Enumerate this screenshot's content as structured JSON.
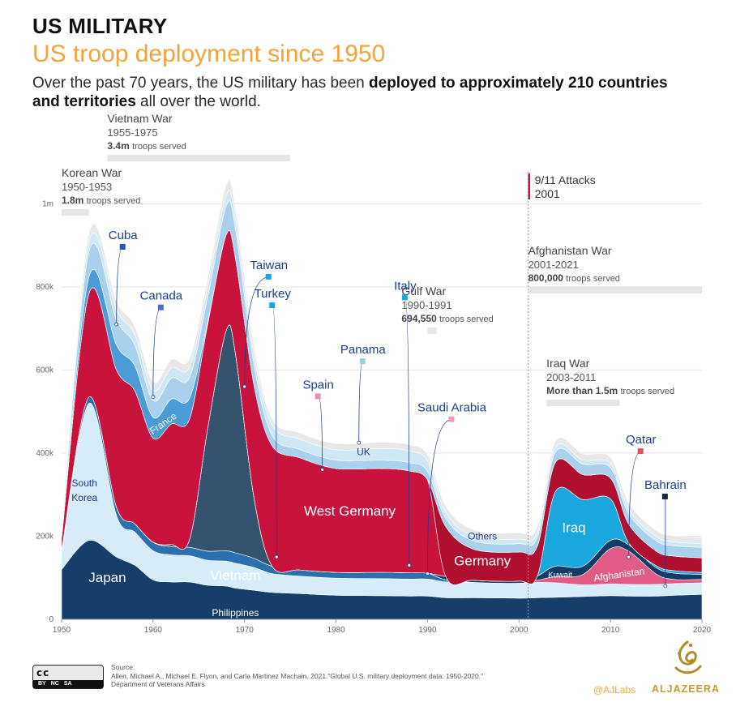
{
  "header": {
    "kicker": "US MILITARY",
    "subtitle": "US troop deployment since 1950",
    "intro_pre": "Over the past 70 years, the US military has been ",
    "intro_bold": "deployed to approximately 210 countries and territories",
    "intro_post": " all over the world."
  },
  "chart_data": {
    "type": "area",
    "stacked": true,
    "x_unit": "year",
    "xlim": [
      1950,
      2020
    ],
    "ylim": [
      0,
      1100000
    ],
    "x_ticks": [
      "1950",
      "1960",
      "1970",
      "1980",
      "1990",
      "2000",
      "2010",
      "2020"
    ],
    "y_ticks": [
      "0",
      "200k",
      "400k",
      "600k",
      "800k",
      "1m"
    ],
    "x": [
      1950,
      1953,
      1956,
      1958,
      1960,
      1962,
      1964,
      1966,
      1968,
      1969,
      1971,
      1973,
      1976,
      1980,
      1985,
      1988,
      1990,
      1992,
      1995,
      2000,
      2002,
      2004,
      2007,
      2010,
      2012,
      2015,
      2017,
      2020
    ],
    "series": [
      {
        "name": "Japan",
        "color": "#163e6a",
        "values": [
          120000,
          190000,
          150000,
          130000,
          95000,
          90000,
          90000,
          82000,
          80000,
          75000,
          70000,
          65000,
          62000,
          58000,
          57000,
          56000,
          56000,
          52000,
          52000,
          51000,
          52000,
          53000,
          55000,
          57000,
          56000,
          56000,
          58000,
          60000
        ]
      },
      {
        "name": "South Korea",
        "color": "#d6ecf9",
        "values": [
          40000,
          330000,
          100000,
          80000,
          70000,
          65000,
          63000,
          60000,
          60000,
          60000,
          55000,
          45000,
          42000,
          41000,
          41000,
          41000,
          41000,
          38000,
          37000,
          36000,
          37000,
          35000,
          28000,
          28000,
          28000,
          28000,
          28000,
          28000
        ]
      },
      {
        "name": "Philippines",
        "color": "#2a6fae",
        "values": [
          5000,
          15000,
          20000,
          20000,
          20000,
          20000,
          20000,
          22000,
          25000,
          25000,
          22000,
          18000,
          15000,
          14000,
          15000,
          15000,
          14000,
          5000,
          0,
          0,
          0,
          0,
          0,
          0,
          0,
          0,
          0,
          0
        ]
      },
      {
        "name": "Vietnam",
        "color": "#34536f",
        "values": [
          0,
          0,
          0,
          0,
          1000,
          5000,
          20000,
          300000,
          530000,
          480000,
          150000,
          0,
          0,
          0,
          0,
          0,
          0,
          0,
          0,
          0,
          0,
          0,
          0,
          0,
          0,
          0,
          0,
          0
        ]
      },
      {
        "name": "Afghanistan",
        "color": "#e05c86",
        "values": [
          0,
          0,
          0,
          0,
          0,
          0,
          0,
          0,
          0,
          0,
          0,
          0,
          0,
          0,
          0,
          0,
          0,
          0,
          0,
          0,
          5000,
          15000,
          25000,
          85000,
          80000,
          25000,
          10000,
          8000
        ]
      },
      {
        "name": "Kuwait",
        "color": "#123c66",
        "values": [
          0,
          0,
          0,
          0,
          0,
          0,
          0,
          0,
          0,
          0,
          0,
          0,
          0,
          0,
          0,
          0,
          0,
          8000,
          5000,
          5000,
          10000,
          25000,
          20000,
          20000,
          15000,
          15000,
          15000,
          12000
        ]
      },
      {
        "name": "Iraq",
        "color": "#1aa7de",
        "values": [
          0,
          0,
          0,
          0,
          0,
          0,
          0,
          0,
          0,
          0,
          0,
          0,
          0,
          0,
          0,
          0,
          0,
          0,
          0,
          0,
          0,
          180000,
          160000,
          100000,
          5000,
          5000,
          6000,
          5000
        ]
      },
      {
        "name": "West Germany",
        "color": "#c8143c",
        "values": [
          30000,
          250000,
          330000,
          320000,
          250000,
          290000,
          290000,
          250000,
          230000,
          230000,
          270000,
          290000,
          270000,
          250000,
          250000,
          245000,
          225000,
          0,
          0,
          0,
          0,
          0,
          0,
          0,
          0,
          0,
          0,
          0
        ]
      },
      {
        "name": "Germany",
        "color": "#b01030",
        "values": [
          0,
          0,
          0,
          0,
          0,
          0,
          0,
          0,
          0,
          0,
          0,
          0,
          0,
          0,
          0,
          0,
          0,
          120000,
          75000,
          70000,
          72000,
          70000,
          60000,
          50000,
          45000,
          35000,
          35000,
          35000
        ]
      },
      {
        "name": "France",
        "color": "#4a9bd6",
        "values": [
          5000,
          40000,
          60000,
          60000,
          50000,
          60000,
          50000,
          5000,
          0,
          0,
          0,
          0,
          0,
          0,
          0,
          0,
          0,
          0,
          0,
          0,
          0,
          0,
          0,
          0,
          0,
          0,
          0,
          0
        ]
      },
      {
        "name": "Others",
        "color": "#a9d1ee",
        "values": [
          15000,
          60000,
          60000,
          50000,
          40000,
          50000,
          50000,
          60000,
          70000,
          70000,
          50000,
          25000,
          20000,
          20000,
          20000,
          20000,
          20000,
          20000,
          20000,
          20000,
          22000,
          25000,
          25000,
          25000,
          25000,
          25000,
          25000,
          25000
        ]
      },
      {
        "name": "UK",
        "color": "#cfe8f6",
        "values": [
          5000,
          25000,
          25000,
          25000,
          25000,
          25000,
          25000,
          25000,
          25000,
          25000,
          25000,
          25000,
          25000,
          25000,
          28000,
          28000,
          25000,
          14000,
          12000,
          11000,
          11000,
          11000,
          10000,
          10000,
          10000,
          10000,
          9000,
          9000
        ]
      },
      {
        "name": "Outline",
        "color": "#e8e8e8",
        "values": [
          10000,
          20000,
          20000,
          20000,
          20000,
          20000,
          20000,
          20000,
          25000,
          25000,
          20000,
          15000,
          15000,
          15000,
          15000,
          15000,
          15000,
          15000,
          15000,
          15000,
          15000,
          15000,
          15000,
          15000,
          15000,
          15000,
          15000,
          15000
        ]
      }
    ],
    "series_labels": [
      {
        "text": "Cuba",
        "x": 1956,
        "y": 710000,
        "dx": 8,
        "dy": -95,
        "color": "#1d3c8f",
        "box": "#1d5aa8"
      },
      {
        "text": "Canada",
        "x": 1960,
        "y": 535000,
        "dx": 10,
        "dy": -110,
        "color": "#1d3c8f",
        "box": "#4a6ad6"
      },
      {
        "text": "Taiwan",
        "x": 1970,
        "y": 560000,
        "dx": 30,
        "dy": -135,
        "color": "#1d3c8f",
        "box": "#1aa7de"
      },
      {
        "text": "Turkey",
        "x": 1973.5,
        "y": 150000,
        "dx": -5,
        "dy": -310,
        "color": "#1d3c8f",
        "box": "#1aa7de"
      },
      {
        "text": "Spain",
        "x": 1978.5,
        "y": 360000,
        "dx": -5,
        "dy": -90,
        "color": "#1d3c8f",
        "box": "#f08cb8"
      },
      {
        "text": "Panama",
        "x": 1982.5,
        "y": 425000,
        "dx": 5,
        "dy": -100,
        "color": "#1d3c8f",
        "box": "#9fd2d6"
      },
      {
        "text": "Italy",
        "x": 1988,
        "y": 130000,
        "dx": -5,
        "dy": -330,
        "color": "#1d3c8f",
        "box": "#1aa7de"
      },
      {
        "text": "Saudi Arabia",
        "x": 1990,
        "y": 110000,
        "dx": 30,
        "dy": -190,
        "color": "#1d3c8f",
        "box": "#f29ab8"
      },
      {
        "text": "Qatar",
        "x": 2012,
        "y": 150000,
        "dx": 15,
        "dy": -130,
        "color": "#1d3c8f",
        "box": "#e8505b"
      },
      {
        "text": "Bahrain",
        "x": 2016,
        "y": 80000,
        "dx": 0,
        "dy": -110,
        "color": "#1d3c8f",
        "box": "#0f2a44"
      }
    ],
    "inline_labels": [
      {
        "text": "Japan",
        "x": 1955,
        "y": 90000,
        "color": "#ffffff"
      },
      {
        "text": "Vietnam",
        "x": 1969,
        "y": 95000,
        "color": "#ffffff"
      },
      {
        "text": "Philippines",
        "x": 1969,
        "y": 8000,
        "color": "#ffffff"
      },
      {
        "text": "South",
        "x": 1952.5,
        "y": 320000,
        "color": "#1d3c8f"
      },
      {
        "text": "Korea",
        "x": 1952.5,
        "y": 285000,
        "color": "#1d3c8f"
      },
      {
        "text": "France",
        "x": 1961.3,
        "y": 465000,
        "color": "#ffffff"
      },
      {
        "text": "West Germany",
        "x": 1981.5,
        "y": 250000,
        "color": "#ffffff"
      },
      {
        "text": "UK",
        "x": 1983,
        "y": 395000,
        "color": "#1d3c8f"
      },
      {
        "text": "Germany",
        "x": 1996,
        "y": 130000,
        "color": "#ffffff"
      },
      {
        "text": "Others",
        "x": 1996,
        "y": 192000,
        "color": "#1d3c8f"
      },
      {
        "text": "Iraq",
        "x": 2006,
        "y": 210000,
        "color": "#ffffff"
      },
      {
        "text": "Kuwait",
        "x": 2004.5,
        "y": 100000,
        "color": "#ffffff"
      },
      {
        "text": "Afghanistan",
        "x": 2011,
        "y": 100000,
        "color": "#ffffff"
      }
    ],
    "events": [
      {
        "name": "Korean War",
        "years": "1950-1953",
        "troops": "1.8m",
        "troops_label": "troops served",
        "start": 1950,
        "end": 1953
      },
      {
        "name": "Vietnam War",
        "years": "1955-1975",
        "troops": "3.4m",
        "troops_label": "troops served",
        "start": 1955,
        "end": 1975
      },
      {
        "name": "Gulf War",
        "years": "1990-1991",
        "troops": "694,550",
        "troops_label": "troops served",
        "start": 1990,
        "end": 1991
      },
      {
        "name": "Afghanistan War",
        "years": "2001-2021",
        "troops": "800,000",
        "troops_label": "troops served",
        "start": 2001,
        "end": 2021
      },
      {
        "name": "Iraq War",
        "years": "2003-2011",
        "troops": "More than 1.5m",
        "troops_label": "troops served",
        "start": 2003,
        "end": 2011
      }
    ],
    "marker": {
      "title": "9/11 Attacks",
      "year_label": "2001",
      "x": 2001,
      "color": "#c8143c"
    },
    "grid": true
  },
  "footer": {
    "source_label": "Source:",
    "source_text": "Allen, Michael A., Michael E. Flynn, and Carla Martinez Machain. 2021.\"Global U.S. military deployment data: 1950-2020.\"",
    "source_text2": "Department of Veterans Affairs",
    "license": "cc",
    "license_by": "BY",
    "license_nc": "NC",
    "license_sa": "SA",
    "credit": "@AJLabs",
    "brand": "ALJAZEERA"
  }
}
